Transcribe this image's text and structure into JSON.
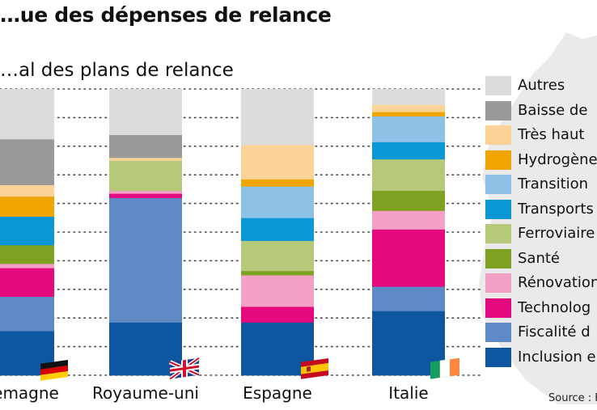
{
  "title": "…ue des dépenses de relance",
  "subtitle": "…al des plans de relance",
  "source": "Source : F",
  "chart_data": {
    "type": "bar",
    "stacked": true,
    "normalized_percent": true,
    "title": "…ue des dépenses de relance",
    "subtitle": "…al des plans de relance",
    "categories": [
      "…emagne",
      "Royaume-uni",
      "Espagne",
      "Italie"
    ],
    "ylim": [
      0,
      100
    ],
    "series": [
      {
        "name": "Inclusion e…",
        "color": "#0e56a0",
        "values": [
          15.5,
          18.5,
          18.5,
          22.5
        ]
      },
      {
        "name": "Fiscalité d…",
        "color": "#5e8ac6",
        "values": [
          12,
          43.5,
          0,
          8.5
        ]
      },
      {
        "name": "Technolog…",
        "color": "#e5097f",
        "values": [
          10,
          1.5,
          5.5,
          20
        ]
      },
      {
        "name": "Rénovation…",
        "color": "#f2a0c4",
        "values": [
          1.5,
          1,
          11,
          6.5
        ]
      },
      {
        "name": "Santé",
        "color": "#7fa121",
        "values": [
          6.5,
          0,
          1.5,
          7
        ]
      },
      {
        "name": "Ferroviaire…",
        "color": "#b6c97a",
        "values": [
          0,
          10.5,
          10.5,
          11
        ]
      },
      {
        "name": "Transports…",
        "color": "#0b96d4",
        "values": [
          10,
          0,
          8,
          6
        ]
      },
      {
        "name": "Transition…",
        "color": "#8ec1e6",
        "values": [
          0,
          0,
          11,
          9
        ]
      },
      {
        "name": "Hydrogène…",
        "color": "#f0a500",
        "values": [
          7,
          0,
          2.5,
          1.5
        ]
      },
      {
        "name": "Très haut…",
        "color": "#fbd398",
        "values": [
          4,
          1,
          12,
          2.5
        ]
      },
      {
        "name": "Baisse de…",
        "color": "#999999",
        "values": [
          16,
          8,
          0,
          0
        ]
      },
      {
        "name": "Autres",
        "color": "#dcdcdc",
        "values": [
          17.5,
          16,
          19.5,
          5.5
        ]
      }
    ]
  },
  "legend": {
    "items": [
      {
        "label": "Autres",
        "color": "#dcdcdc"
      },
      {
        "label": "Baisse de",
        "color": "#999999"
      },
      {
        "label": "Très haut",
        "color": "#fbd398"
      },
      {
        "label": "Hydrogène",
        "color": "#f0a500"
      },
      {
        "label": "Transition",
        "color": "#8ec1e6"
      },
      {
        "label": "Transports",
        "color": "#0b96d4"
      },
      {
        "label": "Ferroviaire",
        "color": "#b6c97a"
      },
      {
        "label": "Santé",
        "color": "#7fa121"
      },
      {
        "label": "Rénovation",
        "color": "#f2a0c4"
      },
      {
        "label": "Technolog",
        "color": "#e5097f"
      },
      {
        "label": "Fiscalité d",
        "color": "#5e8ac6"
      },
      {
        "label": "Inclusion e",
        "color": "#0e56a0"
      }
    ]
  },
  "flags": [
    "germany-flag",
    "uk-flag",
    "spain-flag",
    "ireland-flag"
  ]
}
